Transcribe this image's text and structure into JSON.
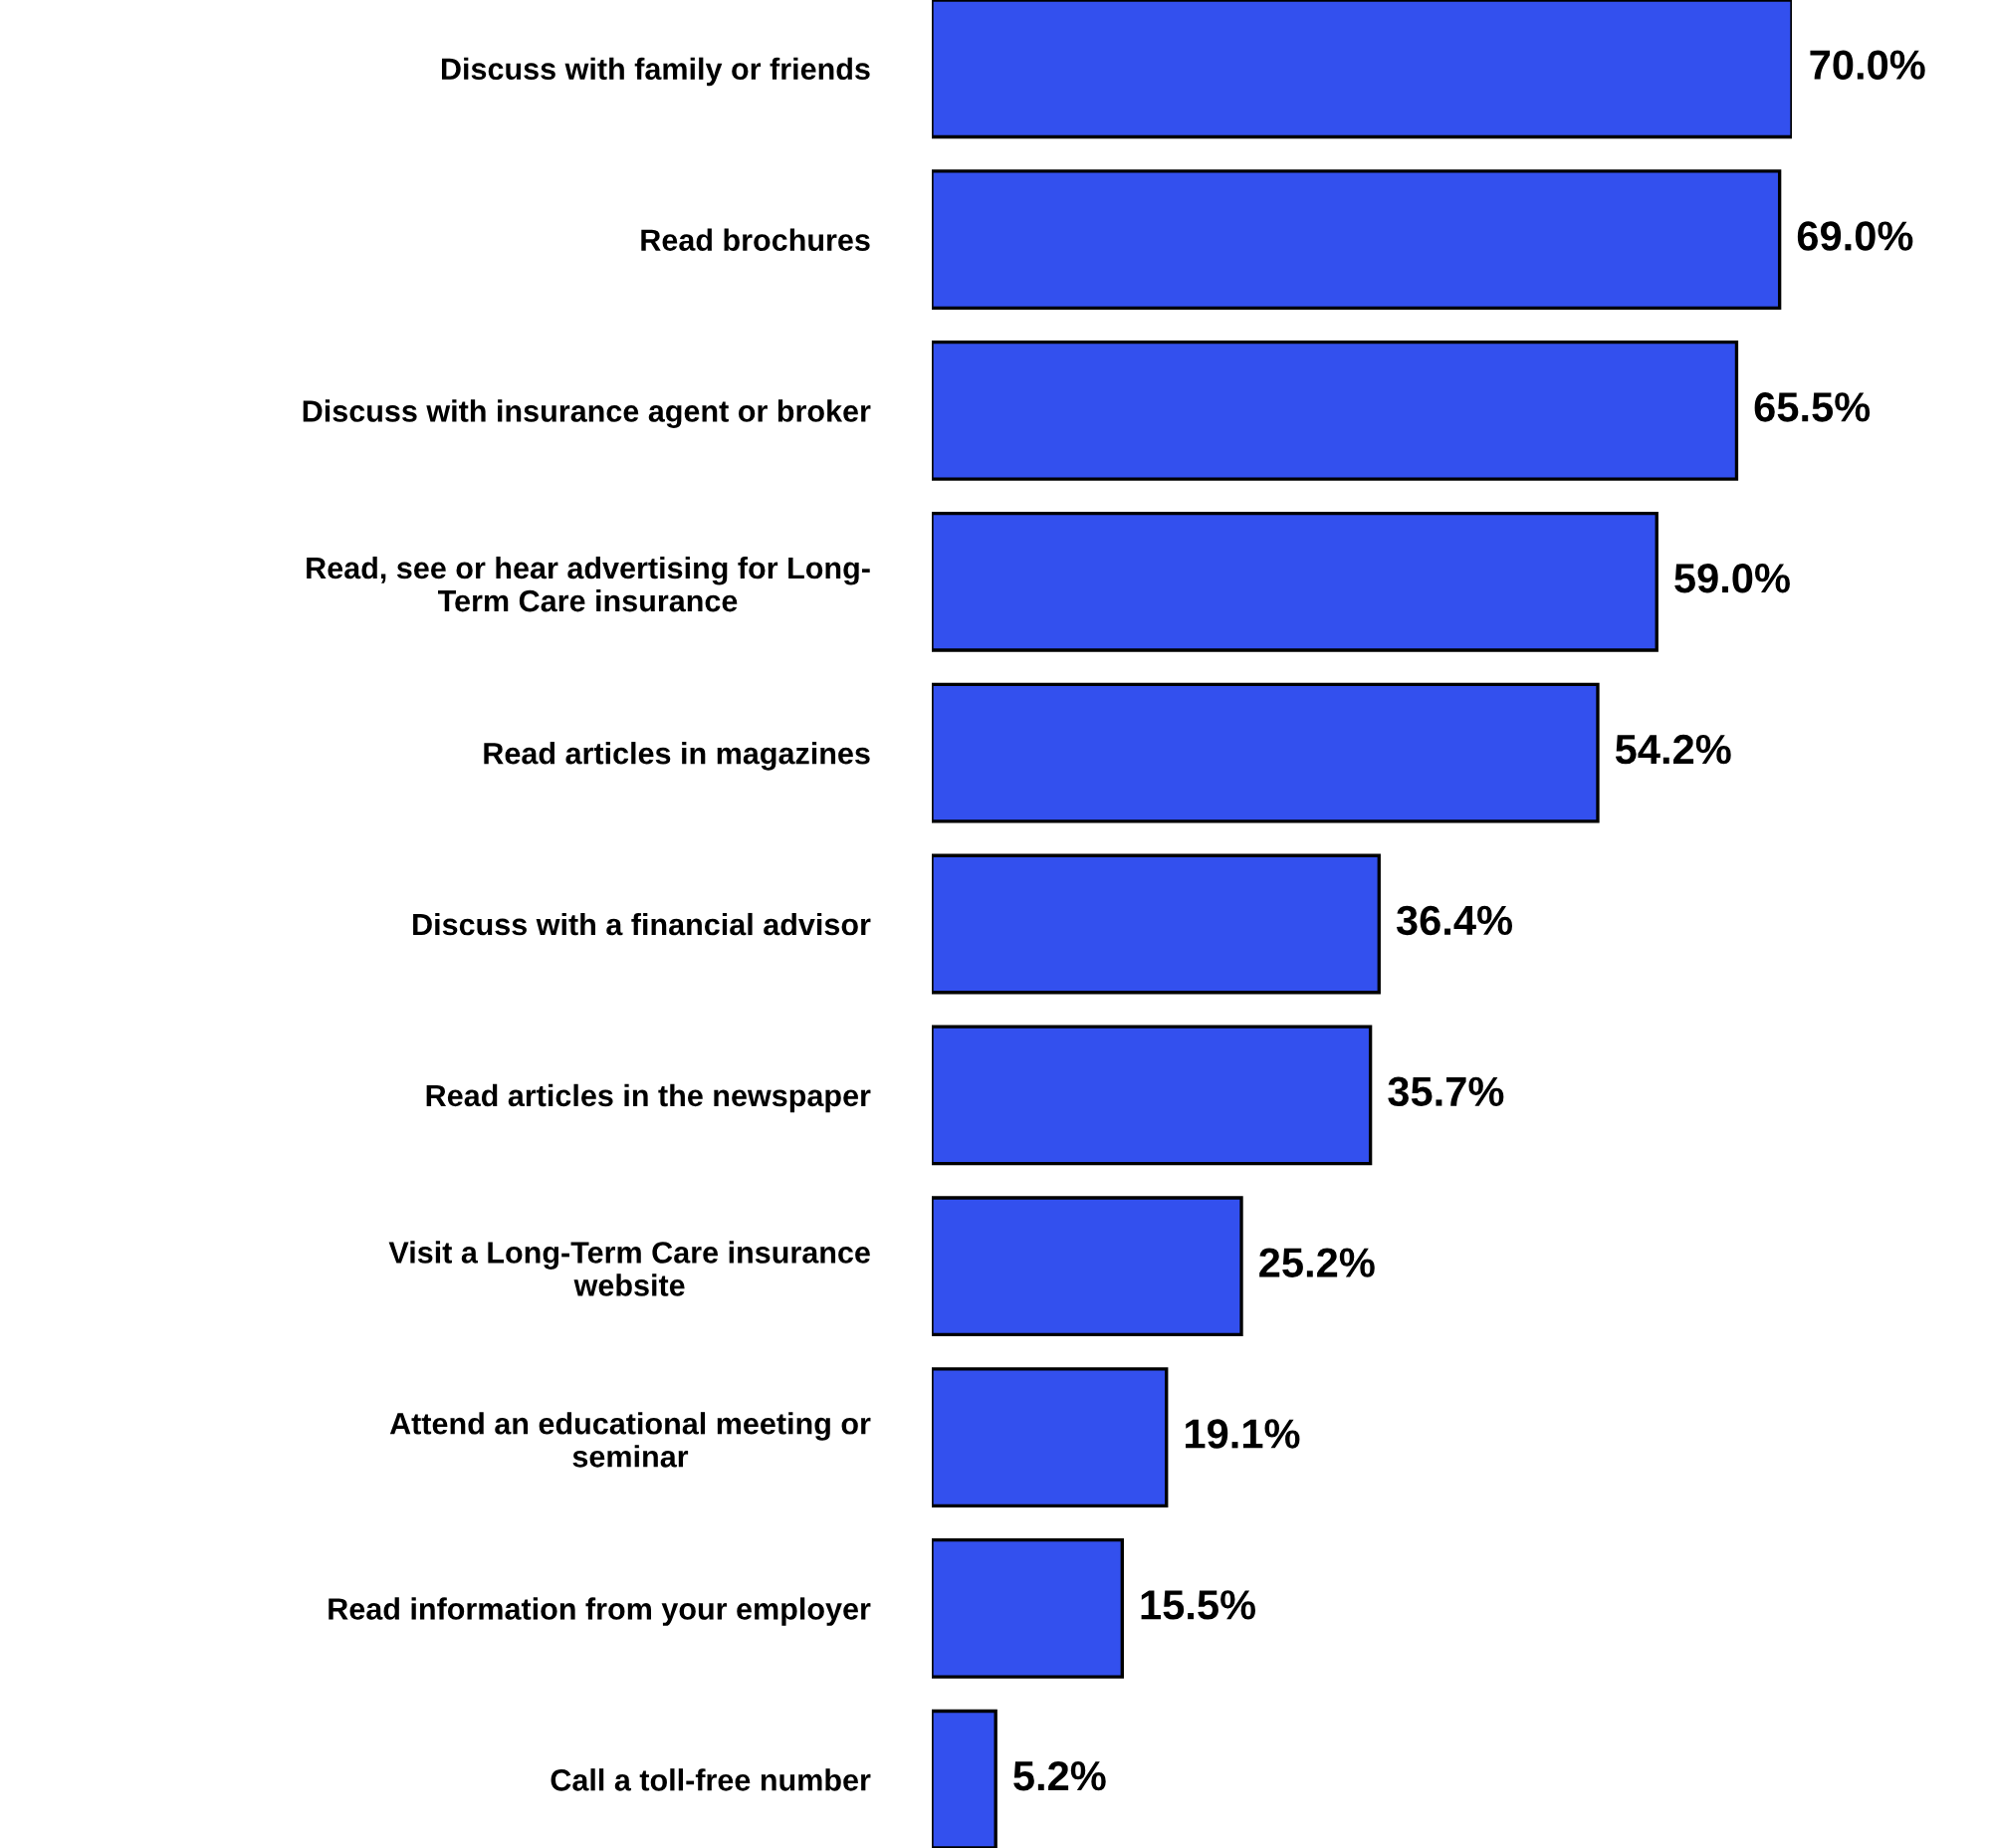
{
  "chart_data": {
    "type": "bar",
    "orientation": "horizontal",
    "value_labels": [
      "70.0%",
      "69.0%",
      "65.5%",
      "59.0%",
      "54.2%",
      "36.4%",
      "35.7%",
      "25.2%",
      "19.1%",
      "15.5%",
      "5.2%"
    ],
    "color": "#3350ee",
    "categories": [
      "Discuss with family or friends",
      "Read brochures",
      "Discuss with insurance agent or broker",
      "Read, see or hear advertising for Long-\nTerm Care insurance",
      "Read articles in magazines",
      "Discuss with a financial advisor",
      "Read articles in the newspaper",
      "Visit a Long-Term Care insurance\nwebsite",
      "Attend an educational meeting or\nseminar",
      "Read information from your employer",
      "Call a toll-free number"
    ],
    "values": [
      70.0,
      69.0,
      65.5,
      59.0,
      54.2,
      36.4,
      35.7,
      25.2,
      19.1,
      15.5,
      5.2
    ]
  }
}
